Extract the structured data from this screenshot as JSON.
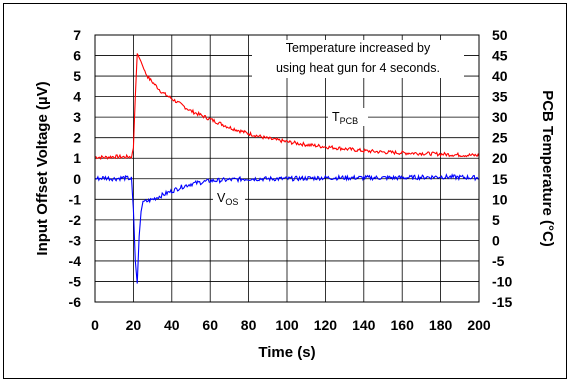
{
  "chart_data": {
    "type": "line",
    "title": "",
    "xlabel": "Time (s)",
    "ylabel_left": "Input Offset Voltage (µV)",
    "ylabel_right": "PCB Temperature (°C)",
    "xlim": [
      0,
      200
    ],
    "ylim_left": [
      -6,
      7
    ],
    "ylim_right": [
      -15,
      50
    ],
    "x_ticks": [
      "0",
      "20",
      "40",
      "60",
      "80",
      "100",
      "120",
      "140",
      "160",
      "180",
      "200"
    ],
    "y_left_ticks": [
      "7",
      "6",
      "5",
      "4",
      "3",
      "2",
      "1",
      "0",
      "-1",
      "-2",
      "-3",
      "-4",
      "-5",
      "-6"
    ],
    "y_right_ticks": [
      "50",
      "45",
      "40",
      "35",
      "30",
      "25",
      "20",
      "15",
      "10",
      "5",
      "0",
      "-5",
      "-10",
      "-15"
    ],
    "grid": true,
    "annotation": [
      "Temperature increased by",
      "using heat gun for 4 seconds."
    ],
    "series": [
      {
        "label_main": "T",
        "label_sub": "PCB",
        "axis": "right",
        "color": "#ff0000",
        "x": [
          0,
          5,
          10,
          15,
          19,
          20,
          21,
          22,
          24,
          26,
          28,
          30,
          35,
          40,
          45,
          50,
          60,
          70,
          80,
          90,
          100,
          110,
          120,
          130,
          140,
          150,
          160,
          170,
          180,
          190,
          200
        ],
        "y": [
          20.3,
          20.2,
          20.4,
          20.3,
          20.4,
          22.5,
          35.0,
          45.5,
          43.5,
          41.0,
          39.5,
          38.5,
          36.0,
          34.5,
          33.0,
          31.5,
          29.5,
          27.5,
          26.0,
          24.8,
          24.0,
          23.3,
          22.8,
          22.3,
          21.8,
          21.5,
          21.3,
          21.2,
          21.0,
          20.8,
          20.7
        ]
      },
      {
        "label_main": "V",
        "label_sub": "OS",
        "axis": "left",
        "color": "#0000ff",
        "x": [
          0,
          5,
          10,
          15,
          19,
          20,
          21,
          22,
          23,
          24,
          25,
          27,
          30,
          35,
          40,
          45,
          50,
          60,
          70,
          80,
          90,
          100,
          120,
          140,
          160,
          180,
          200
        ],
        "y": [
          0.0,
          0.05,
          0.0,
          0.05,
          0.0,
          -1.5,
          -4.0,
          -5.1,
          -2.8,
          -1.6,
          -1.1,
          -1.1,
          -1.0,
          -0.8,
          -0.6,
          -0.4,
          -0.25,
          -0.1,
          -0.05,
          0.0,
          0.0,
          0.0,
          0.05,
          0.05,
          0.05,
          0.1,
          0.05
        ]
      }
    ]
  }
}
